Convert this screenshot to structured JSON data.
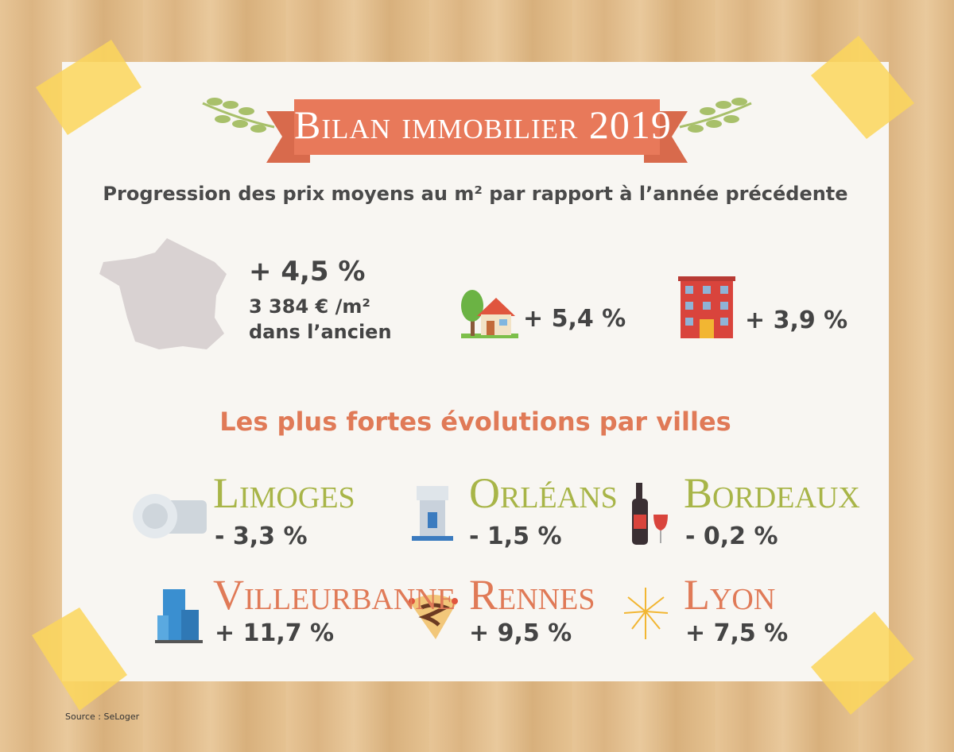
{
  "header": {
    "title": "Bilan immobilier 2019",
    "subtitle": "Progression des prix moyens au m² par rapport à l’année précédente"
  },
  "national": {
    "change": "+ 4,5 %",
    "price": "3 384 € /m²",
    "note": "dans l’ancien"
  },
  "houses": {
    "change": "+ 5,4 %"
  },
  "apartments": {
    "change": "+ 3,9 %"
  },
  "cities": {
    "title": "Les plus fortes évolutions par villes",
    "items": [
      {
        "name": "Limoges",
        "change": "- 3,3 %"
      },
      {
        "name": "Orléans",
        "change": "- 1,5 %"
      },
      {
        "name": "Bordeaux",
        "change": "- 0,2 %"
      },
      {
        "name": "Villeurbanne",
        "change": "+ 11,7 %"
      },
      {
        "name": "Rennes",
        "change": "+ 9,5 %"
      },
      {
        "name": "Lyon",
        "change": "+ 7,5 %"
      }
    ]
  },
  "source": "Source : SeLoger"
}
